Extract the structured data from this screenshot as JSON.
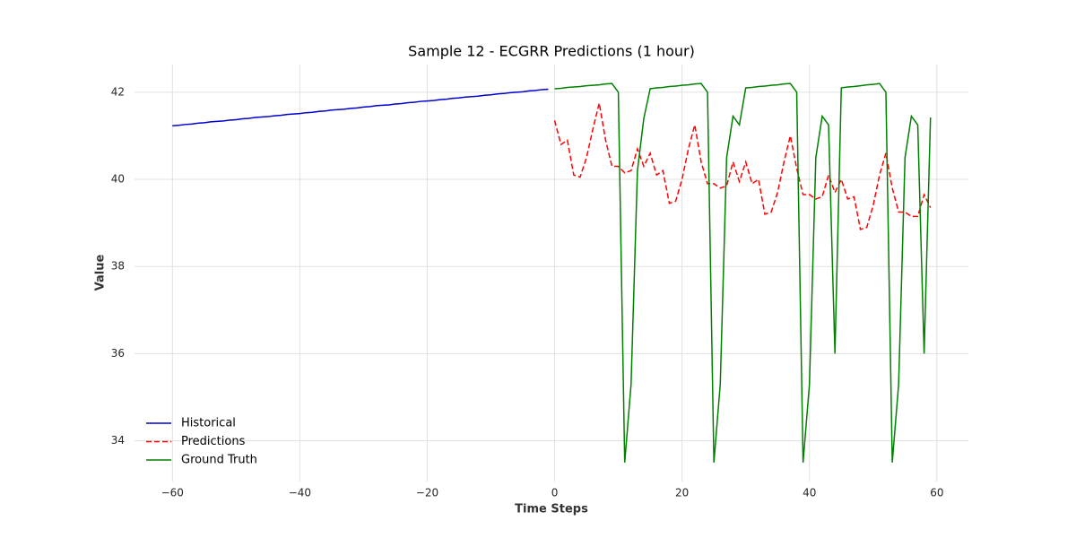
{
  "chart_data": {
    "type": "line",
    "title": "Sample 12 - ECGRR Predictions (1 hour)",
    "x_label": "Time Steps",
    "y_label": "Value",
    "xlim": [
      -65.95,
      64.95
    ],
    "ylim": [
      33.065,
      42.635
    ],
    "xticks": [
      {
        "value": -60,
        "label": "−60"
      },
      {
        "value": -40,
        "label": "−40"
      },
      {
        "value": -20,
        "label": "−20"
      },
      0,
      20,
      40,
      60
    ],
    "yticks": [
      34,
      36,
      38,
      40,
      42
    ],
    "grid": true,
    "legend": "lower left",
    "series": [
      {
        "name": "Historical",
        "color": "#0000cc",
        "linestyle": "solid",
        "x": [
          -60,
          -59,
          -58,
          -57,
          -56,
          -55,
          -54,
          -53,
          -52,
          -51,
          -50,
          -49,
          -48,
          -47,
          -46,
          -45,
          -44,
          -43,
          -42,
          -41,
          -40,
          -39,
          -38,
          -37,
          -36,
          -35,
          -34,
          -33,
          -32,
          -31,
          -30,
          -29,
          -28,
          -27,
          -26,
          -25,
          -24,
          -23,
          -22,
          -21,
          -20,
          -19,
          -18,
          -17,
          -16,
          -15,
          -14,
          -13,
          -12,
          -11,
          -10,
          -9,
          -8,
          -7,
          -6,
          -5,
          -4,
          -3,
          -2,
          -1
        ],
        "values": [
          41.23,
          41.24,
          41.26,
          41.27,
          41.29,
          41.3,
          41.32,
          41.33,
          41.34,
          41.36,
          41.37,
          41.39,
          41.4,
          41.42,
          41.43,
          41.44,
          41.46,
          41.47,
          41.49,
          41.5,
          41.51,
          41.53,
          41.54,
          41.56,
          41.57,
          41.59,
          41.6,
          41.61,
          41.63,
          41.64,
          41.66,
          41.67,
          41.69,
          41.7,
          41.71,
          41.73,
          41.74,
          41.76,
          41.77,
          41.79,
          41.8,
          41.81,
          41.83,
          41.84,
          41.86,
          41.87,
          41.89,
          41.9,
          41.91,
          41.93,
          41.94,
          41.96,
          41.97,
          41.99,
          42.0,
          42.01,
          42.03,
          42.04,
          42.06,
          42.07
        ]
      },
      {
        "name": "Predictions",
        "color": "#ff0000",
        "linestyle": "dashed",
        "x": [
          0,
          1,
          2,
          3,
          4,
          5,
          6,
          7,
          8,
          9,
          10,
          11,
          12,
          13,
          14,
          15,
          16,
          17,
          18,
          19,
          20,
          21,
          22,
          23,
          24,
          25,
          26,
          27,
          28,
          29,
          30,
          31,
          32,
          33,
          34,
          35,
          36,
          37,
          38,
          39,
          40,
          41,
          42,
          43,
          44,
          45,
          46,
          47,
          48,
          49,
          50,
          51,
          52,
          53,
          54,
          55,
          56,
          57,
          58,
          59
        ],
        "values": [
          41.35,
          40.8,
          40.9,
          40.1,
          40.05,
          40.5,
          41.15,
          41.75,
          40.9,
          40.3,
          40.3,
          40.15,
          40.2,
          40.7,
          40.3,
          40.6,
          40.1,
          40.2,
          39.45,
          39.5,
          40.0,
          40.7,
          41.25,
          40.4,
          39.9,
          39.9,
          39.8,
          39.85,
          40.4,
          39.95,
          40.4,
          39.9,
          40.0,
          39.2,
          39.25,
          39.7,
          40.4,
          41.0,
          40.25,
          39.65,
          39.65,
          39.55,
          39.6,
          40.1,
          39.7,
          40.0,
          39.55,
          39.6,
          38.85,
          38.9,
          39.4,
          40.1,
          40.6,
          39.8,
          39.25,
          39.25,
          39.15,
          39.15,
          39.65,
          39.35
        ]
      },
      {
        "name": "Ground Truth",
        "color": "#008000",
        "linestyle": "solid",
        "x": [
          0,
          1,
          2,
          3,
          4,
          5,
          6,
          7,
          8,
          9,
          10,
          11,
          12,
          13,
          14,
          15,
          16,
          17,
          18,
          19,
          20,
          21,
          22,
          23,
          24,
          25,
          26,
          27,
          28,
          29,
          30,
          31,
          32,
          33,
          34,
          35,
          36,
          37,
          38,
          39,
          40,
          41,
          42,
          43,
          44,
          45,
          46,
          47,
          48,
          49,
          50,
          51,
          52,
          53,
          54,
          55,
          56,
          57,
          58,
          59
        ],
        "values": [
          42.08,
          42.09,
          42.11,
          42.12,
          42.13,
          42.15,
          42.16,
          42.17,
          42.19,
          42.2,
          42.0,
          33.5,
          35.3,
          40.2,
          41.4,
          42.08,
          42.1,
          42.11,
          42.13,
          42.14,
          42.16,
          42.17,
          42.19,
          42.2,
          42.0,
          33.5,
          35.3,
          40.5,
          41.45,
          41.25,
          42.1,
          42.11,
          42.13,
          42.14,
          42.16,
          42.17,
          42.19,
          42.2,
          42.0,
          33.5,
          35.3,
          40.5,
          41.45,
          41.25,
          36.0,
          42.1,
          42.12,
          42.13,
          42.15,
          42.17,
          42.18,
          42.2,
          42.0,
          33.5,
          35.3,
          40.5,
          41.45,
          41.25,
          36.0,
          41.42
        ]
      }
    ]
  }
}
